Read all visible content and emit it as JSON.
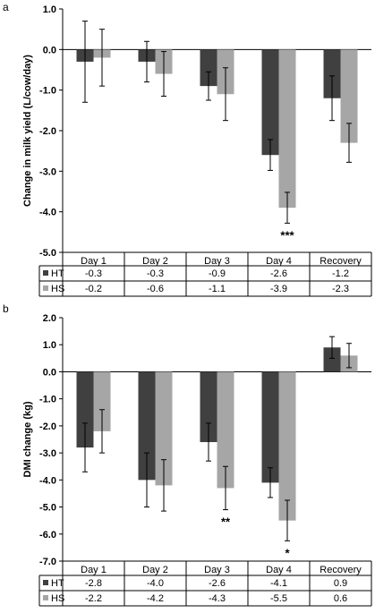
{
  "chart_data": [
    {
      "panel_label": "a",
      "type": "bar",
      "categories": [
        "Day 1",
        "Day 2",
        "Day 3",
        "Day 4",
        "Recovery"
      ],
      "series": [
        {
          "name": "HT",
          "values": [
            -0.3,
            -0.3,
            -0.9,
            -2.6,
            -1.2
          ],
          "error": [
            1.0,
            0.5,
            0.35,
            0.38,
            0.55
          ],
          "color": "#404040"
        },
        {
          "name": "HS",
          "values": [
            -0.2,
            -0.6,
            -1.1,
            -3.9,
            -2.3
          ],
          "error": [
            0.7,
            0.55,
            0.65,
            0.38,
            0.48
          ],
          "color": "#a6a6a6"
        }
      ],
      "table_values": {
        "HT": [
          "-0.3",
          "-0.3",
          "-0.9",
          "-2.6",
          "-1.2"
        ],
        "HS": [
          "-0.2",
          "-0.6",
          "-1.1",
          "-3.9",
          "-2.3"
        ]
      },
      "ylabel": "Change in milk yield  (L/cow/day)",
      "ylim": [
        -5.0,
        1.0
      ],
      "yticks": [
        "1.0",
        "0.0",
        "-1.0",
        "-2.0",
        "-3.0",
        "-4.0",
        "-5.0"
      ],
      "annotations": [
        {
          "category": "Day 4",
          "text": "***"
        }
      ],
      "grid": false,
      "legend": "data-table"
    },
    {
      "panel_label": "b",
      "type": "bar",
      "categories": [
        "Day 1",
        "Day 2",
        "Day 3",
        "Day 4",
        "Recovery"
      ],
      "series": [
        {
          "name": "HT",
          "values": [
            -2.8,
            -4.0,
            -2.6,
            -4.1,
            0.9
          ],
          "error": [
            0.9,
            1.0,
            0.7,
            0.55,
            0.4
          ],
          "color": "#404040"
        },
        {
          "name": "HS",
          "values": [
            -2.2,
            -4.2,
            -4.3,
            -5.5,
            0.6
          ],
          "error": [
            0.8,
            0.95,
            0.8,
            0.75,
            0.45
          ],
          "color": "#a6a6a6"
        }
      ],
      "table_values": {
        "HT": [
          "-2.8",
          "-4.0",
          "-2.6",
          "-4.1",
          "0.9"
        ],
        "HS": [
          "-2.2",
          "-4.2",
          "-4.3",
          "-5.5",
          "0.6"
        ]
      },
      "ylabel": "DMI change (kg)",
      "ylim": [
        -7.0,
        2.0
      ],
      "yticks": [
        "2.0",
        "1.0",
        "0.0",
        "-1.0",
        "-2.0",
        "-3.0",
        "-4.0",
        "-5.0",
        "-6.0",
        "-7.0"
      ],
      "annotations": [
        {
          "category": "Day 3",
          "text": "**"
        },
        {
          "category": "Day 4",
          "text": "*"
        }
      ],
      "grid": false,
      "legend": "data-table"
    }
  ]
}
